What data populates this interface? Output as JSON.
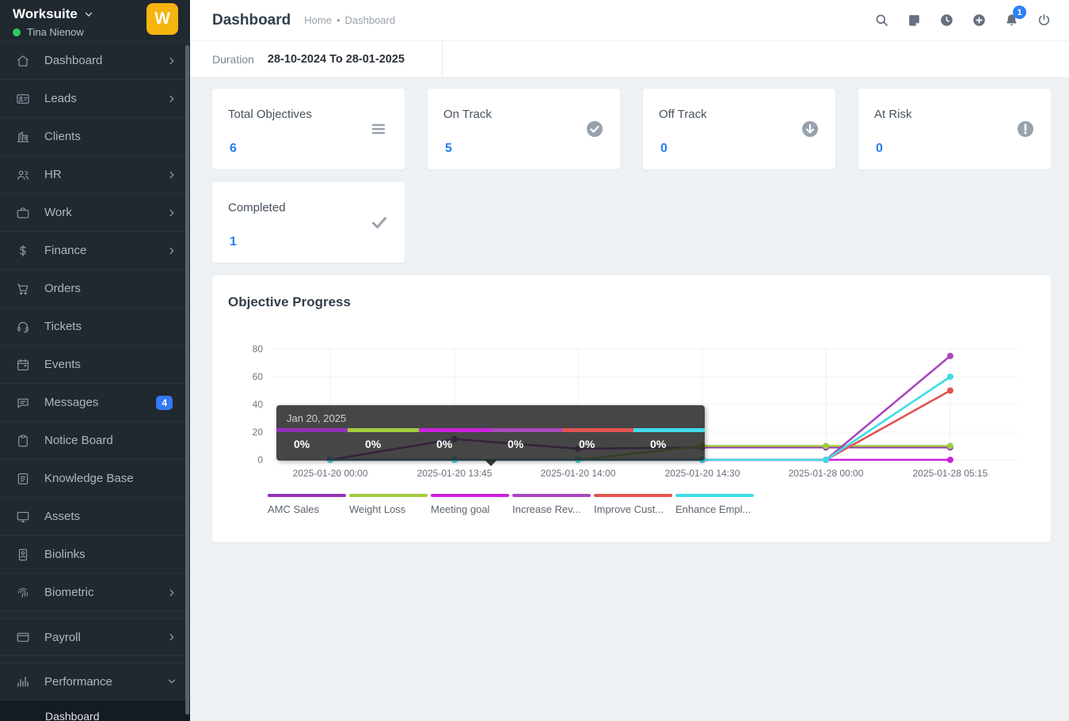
{
  "colors": {
    "accent_blue": "#2680f0",
    "badge_blue": "#3479f6",
    "logo_yellow": "#f6b40e",
    "online_green": "#2ecc5f",
    "sidebar_bg": "#202830"
  },
  "sidebar": {
    "app_name": "Worksuite",
    "user_name": "Tina Nienow",
    "user_status": "online",
    "logo_letter": "W",
    "items": [
      {
        "label": "Dashboard",
        "icon": "home-icon",
        "chevron": "right"
      },
      {
        "label": "Leads",
        "icon": "id-card-icon",
        "chevron": "right"
      },
      {
        "label": "Clients",
        "icon": "building-icon",
        "chevron": null
      },
      {
        "label": "HR",
        "icon": "users-icon",
        "chevron": "right"
      },
      {
        "label": "Work",
        "icon": "briefcase-icon",
        "chevron": "right"
      },
      {
        "label": "Finance",
        "icon": "dollar-icon",
        "chevron": "right"
      },
      {
        "label": "Orders",
        "icon": "cart-icon",
        "chevron": null
      },
      {
        "label": "Tickets",
        "icon": "headset-icon",
        "chevron": null
      },
      {
        "label": "Events",
        "icon": "calendar-icon",
        "chevron": null
      },
      {
        "label": "Messages",
        "icon": "chat-icon",
        "chevron": null,
        "badge": "4"
      },
      {
        "label": "Notice Board",
        "icon": "clipboard-icon",
        "chevron": null
      },
      {
        "label": "Knowledge Base",
        "icon": "document-icon",
        "chevron": null
      },
      {
        "label": "Assets",
        "icon": "monitor-icon",
        "chevron": null
      },
      {
        "label": "Biolinks",
        "icon": "biolink-icon",
        "chevron": null
      },
      {
        "label": "Biometric",
        "icon": "fingerprint-icon",
        "chevron": "right"
      },
      {
        "label": "Payroll",
        "icon": "wallet-icon",
        "chevron": "right",
        "group_gap": true
      },
      {
        "label": "Performance",
        "icon": "bar-chart-icon",
        "chevron": "down",
        "group_gap": true,
        "expanded": true
      },
      {
        "label": "Dashboard",
        "type": "sub"
      }
    ]
  },
  "header": {
    "title": "Dashboard",
    "breadcrumb": {
      "home": "Home",
      "separator": "•",
      "current": "Dashboard"
    },
    "icons": [
      {
        "name": "search-icon"
      },
      {
        "name": "note-icon"
      },
      {
        "name": "clock-icon"
      },
      {
        "name": "plus-circle-icon"
      },
      {
        "name": "bell-icon",
        "badge": "1"
      },
      {
        "name": "power-icon"
      }
    ]
  },
  "filters": {
    "duration_label": "Duration",
    "duration_value": "28-10-2024 To 28-01-2025"
  },
  "cards": [
    {
      "label": "Total Objectives",
      "value": "6",
      "icon": "list-icon"
    },
    {
      "label": "On Track",
      "value": "5",
      "icon": "check-circle-icon"
    },
    {
      "label": "Off Track",
      "value": "0",
      "icon": "arrow-down-circle-icon"
    },
    {
      "label": "At Risk",
      "value": "0",
      "icon": "exclamation-circle-icon"
    },
    {
      "label": "Completed",
      "value": "1",
      "icon": "check-icon"
    }
  ],
  "chart_section": {
    "title": "Objective Progress"
  },
  "tooltip": {
    "title": "Jan 20, 2025",
    "values": [
      "0%",
      "0%",
      "0%",
      "0%",
      "0%",
      "0%"
    ]
  },
  "chart_data": {
    "type": "line",
    "x": [
      "2025-01-20 00:00",
      "2025-01-20 13:45",
      "2025-01-20 14:00",
      "2025-01-20 14:30",
      "2025-01-28 00:00",
      "2025-01-28 05:15"
    ],
    "series": [
      {
        "name": "AMC Sales",
        "color": "#9332b8",
        "values": [
          0,
          15,
          8,
          9,
          9,
          9
        ]
      },
      {
        "name": "Weight Loss",
        "color": "#a2cc3f",
        "values": [
          0,
          0,
          0,
          10,
          10,
          10
        ]
      },
      {
        "name": "Meeting goal",
        "color": "#cc22dd",
        "values": [
          0,
          0,
          0,
          0,
          0,
          0
        ]
      },
      {
        "name": "Increase Rev...",
        "color": "#ab47bc",
        "values": [
          0,
          0,
          0,
          0,
          0,
          75
        ]
      },
      {
        "name": "Improve Cust...",
        "color": "#e25450",
        "values": [
          0,
          0,
          0,
          0,
          0,
          50
        ]
      },
      {
        "name": "Enhance Empl...",
        "color": "#40dce8",
        "values": [
          0,
          0,
          0,
          0,
          0,
          60
        ]
      }
    ],
    "ylim": [
      0,
      80
    ],
    "yticks": [
      0,
      20,
      40,
      60,
      80
    ],
    "grid": true,
    "legend_position": "bottom"
  }
}
